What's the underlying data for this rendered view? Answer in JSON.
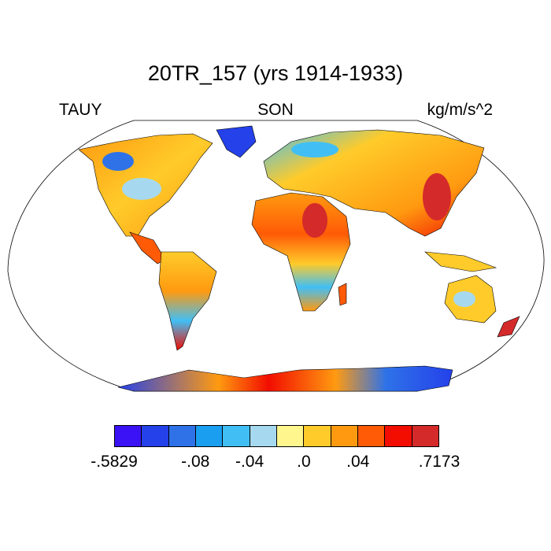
{
  "figure": {
    "title": "20TR_157 (yrs 1914-1933)",
    "left_label": "TAUY",
    "center_label": "SON",
    "right_label": "kg/m/s^2"
  },
  "map": {
    "projection": "robinson",
    "ocean_color": "#ffffff",
    "coastline_color": "#000000"
  },
  "colorbar": {
    "colors": [
      "#3a12f5",
      "#2441ea",
      "#2f72e8",
      "#1a9ff0",
      "#41bff5",
      "#a6d9ef",
      "#fff68e",
      "#ffcb2a",
      "#ff9a10",
      "#ff5a06",
      "#f20d00",
      "#d42a2a"
    ],
    "labels": [
      {
        "text": "-.5829",
        "boundary": 0
      },
      {
        "text": "-.08",
        "boundary": 3
      },
      {
        "text": "-.04",
        "boundary": 5
      },
      {
        "text": ".0",
        "boundary": 7
      },
      {
        "text": ".04",
        "boundary": 9
      },
      {
        "text": ".7173",
        "boundary": 12
      }
    ]
  }
}
